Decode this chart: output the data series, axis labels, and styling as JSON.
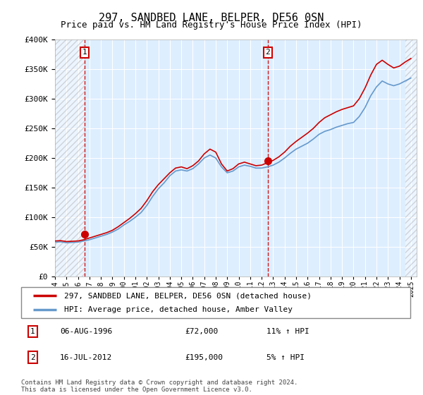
{
  "title1": "297, SANDBED LANE, BELPER, DE56 0SN",
  "title2": "Price paid vs. HM Land Registry's House Price Index (HPI)",
  "sale1_year": 1996.6,
  "sale1_price": 72000,
  "sale2_year": 2012.54,
  "sale2_price": 195000,
  "sale1_date": "06-AUG-1996",
  "sale1_amount": "£72,000",
  "sale1_hpi": "11% ↑ HPI",
  "sale2_date": "16-JUL-2012",
  "sale2_amount": "£195,000",
  "sale2_hpi": "5% ↑ HPI",
  "legend1": "297, SANDBED LANE, BELPER, DE56 0SN (detached house)",
  "legend2": "HPI: Average price, detached house, Amber Valley",
  "footnote1": "Contains HM Land Registry data © Crown copyright and database right 2024.",
  "footnote2": "This data is licensed under the Open Government Licence v3.0.",
  "xmin": 1994.0,
  "xmax": 2025.5,
  "ymin": 0,
  "ymax": 400000,
  "hatch_left_end": 1996.6,
  "hatch_right_start": 2024.5,
  "bg_color": "#ddeeff",
  "red_color": "#cc0000",
  "blue_color": "#6699cc",
  "hpi_data": [
    [
      1994.0,
      58000
    ],
    [
      1994.5,
      58500
    ],
    [
      1995.0,
      57000
    ],
    [
      1995.5,
      57500
    ],
    [
      1996.0,
      58000
    ],
    [
      1996.5,
      60000
    ],
    [
      1997.0,
      62000
    ],
    [
      1997.5,
      65000
    ],
    [
      1998.0,
      68000
    ],
    [
      1998.5,
      71000
    ],
    [
      1999.0,
      75000
    ],
    [
      1999.5,
      80000
    ],
    [
      2000.0,
      87000
    ],
    [
      2000.5,
      93000
    ],
    [
      2001.0,
      100000
    ],
    [
      2001.5,
      108000
    ],
    [
      2002.0,
      120000
    ],
    [
      2002.5,
      135000
    ],
    [
      2003.0,
      148000
    ],
    [
      2003.5,
      158000
    ],
    [
      2004.0,
      170000
    ],
    [
      2004.5,
      178000
    ],
    [
      2005.0,
      180000
    ],
    [
      2005.5,
      178000
    ],
    [
      2006.0,
      182000
    ],
    [
      2006.5,
      190000
    ],
    [
      2007.0,
      200000
    ],
    [
      2007.5,
      205000
    ],
    [
      2008.0,
      200000
    ],
    [
      2008.5,
      185000
    ],
    [
      2009.0,
      175000
    ],
    [
      2009.5,
      178000
    ],
    [
      2010.0,
      185000
    ],
    [
      2010.5,
      188000
    ],
    [
      2011.0,
      186000
    ],
    [
      2011.5,
      183000
    ],
    [
      2012.0,
      183000
    ],
    [
      2012.5,
      185000
    ],
    [
      2013.0,
      188000
    ],
    [
      2013.5,
      193000
    ],
    [
      2014.0,
      200000
    ],
    [
      2014.5,
      208000
    ],
    [
      2015.0,
      215000
    ],
    [
      2015.5,
      220000
    ],
    [
      2016.0,
      225000
    ],
    [
      2016.5,
      232000
    ],
    [
      2017.0,
      240000
    ],
    [
      2017.5,
      245000
    ],
    [
      2018.0,
      248000
    ],
    [
      2018.5,
      252000
    ],
    [
      2019.0,
      255000
    ],
    [
      2019.5,
      258000
    ],
    [
      2020.0,
      260000
    ],
    [
      2020.5,
      270000
    ],
    [
      2021.0,
      285000
    ],
    [
      2021.5,
      305000
    ],
    [
      2022.0,
      320000
    ],
    [
      2022.5,
      330000
    ],
    [
      2023.0,
      325000
    ],
    [
      2023.5,
      322000
    ],
    [
      2024.0,
      325000
    ],
    [
      2024.5,
      330000
    ],
    [
      2025.0,
      335000
    ]
  ],
  "price_data": [
    [
      1994.0,
      60000
    ],
    [
      1994.5,
      60500
    ],
    [
      1995.0,
      59000
    ],
    [
      1995.5,
      59500
    ],
    [
      1996.0,
      60000
    ],
    [
      1996.5,
      62000
    ],
    [
      1997.0,
      65000
    ],
    [
      1997.5,
      68000
    ],
    [
      1998.0,
      71000
    ],
    [
      1998.5,
      74000
    ],
    [
      1999.0,
      78000
    ],
    [
      1999.5,
      84000
    ],
    [
      2000.0,
      91000
    ],
    [
      2000.5,
      98000
    ],
    [
      2001.0,
      106000
    ],
    [
      2001.5,
      115000
    ],
    [
      2002.0,
      128000
    ],
    [
      2002.5,
      143000
    ],
    [
      2003.0,
      155000
    ],
    [
      2003.5,
      165000
    ],
    [
      2004.0,
      175000
    ],
    [
      2004.5,
      183000
    ],
    [
      2005.0,
      185000
    ],
    [
      2005.5,
      182000
    ],
    [
      2006.0,
      187000
    ],
    [
      2006.5,
      195000
    ],
    [
      2007.0,
      207000
    ],
    [
      2007.5,
      215000
    ],
    [
      2008.0,
      210000
    ],
    [
      2008.5,
      190000
    ],
    [
      2009.0,
      178000
    ],
    [
      2009.5,
      182000
    ],
    [
      2010.0,
      190000
    ],
    [
      2010.5,
      193000
    ],
    [
      2011.0,
      190000
    ],
    [
      2011.5,
      187000
    ],
    [
      2012.0,
      188000
    ],
    [
      2012.5,
      192000
    ],
    [
      2013.0,
      196000
    ],
    [
      2013.5,
      202000
    ],
    [
      2014.0,
      210000
    ],
    [
      2014.5,
      220000
    ],
    [
      2015.0,
      228000
    ],
    [
      2015.5,
      235000
    ],
    [
      2016.0,
      242000
    ],
    [
      2016.5,
      250000
    ],
    [
      2017.0,
      260000
    ],
    [
      2017.5,
      268000
    ],
    [
      2018.0,
      273000
    ],
    [
      2018.5,
      278000
    ],
    [
      2019.0,
      282000
    ],
    [
      2019.5,
      285000
    ],
    [
      2020.0,
      288000
    ],
    [
      2020.5,
      300000
    ],
    [
      2021.0,
      318000
    ],
    [
      2021.5,
      340000
    ],
    [
      2022.0,
      358000
    ],
    [
      2022.5,
      365000
    ],
    [
      2023.0,
      358000
    ],
    [
      2023.5,
      352000
    ],
    [
      2024.0,
      355000
    ],
    [
      2024.5,
      362000
    ],
    [
      2025.0,
      368000
    ]
  ]
}
